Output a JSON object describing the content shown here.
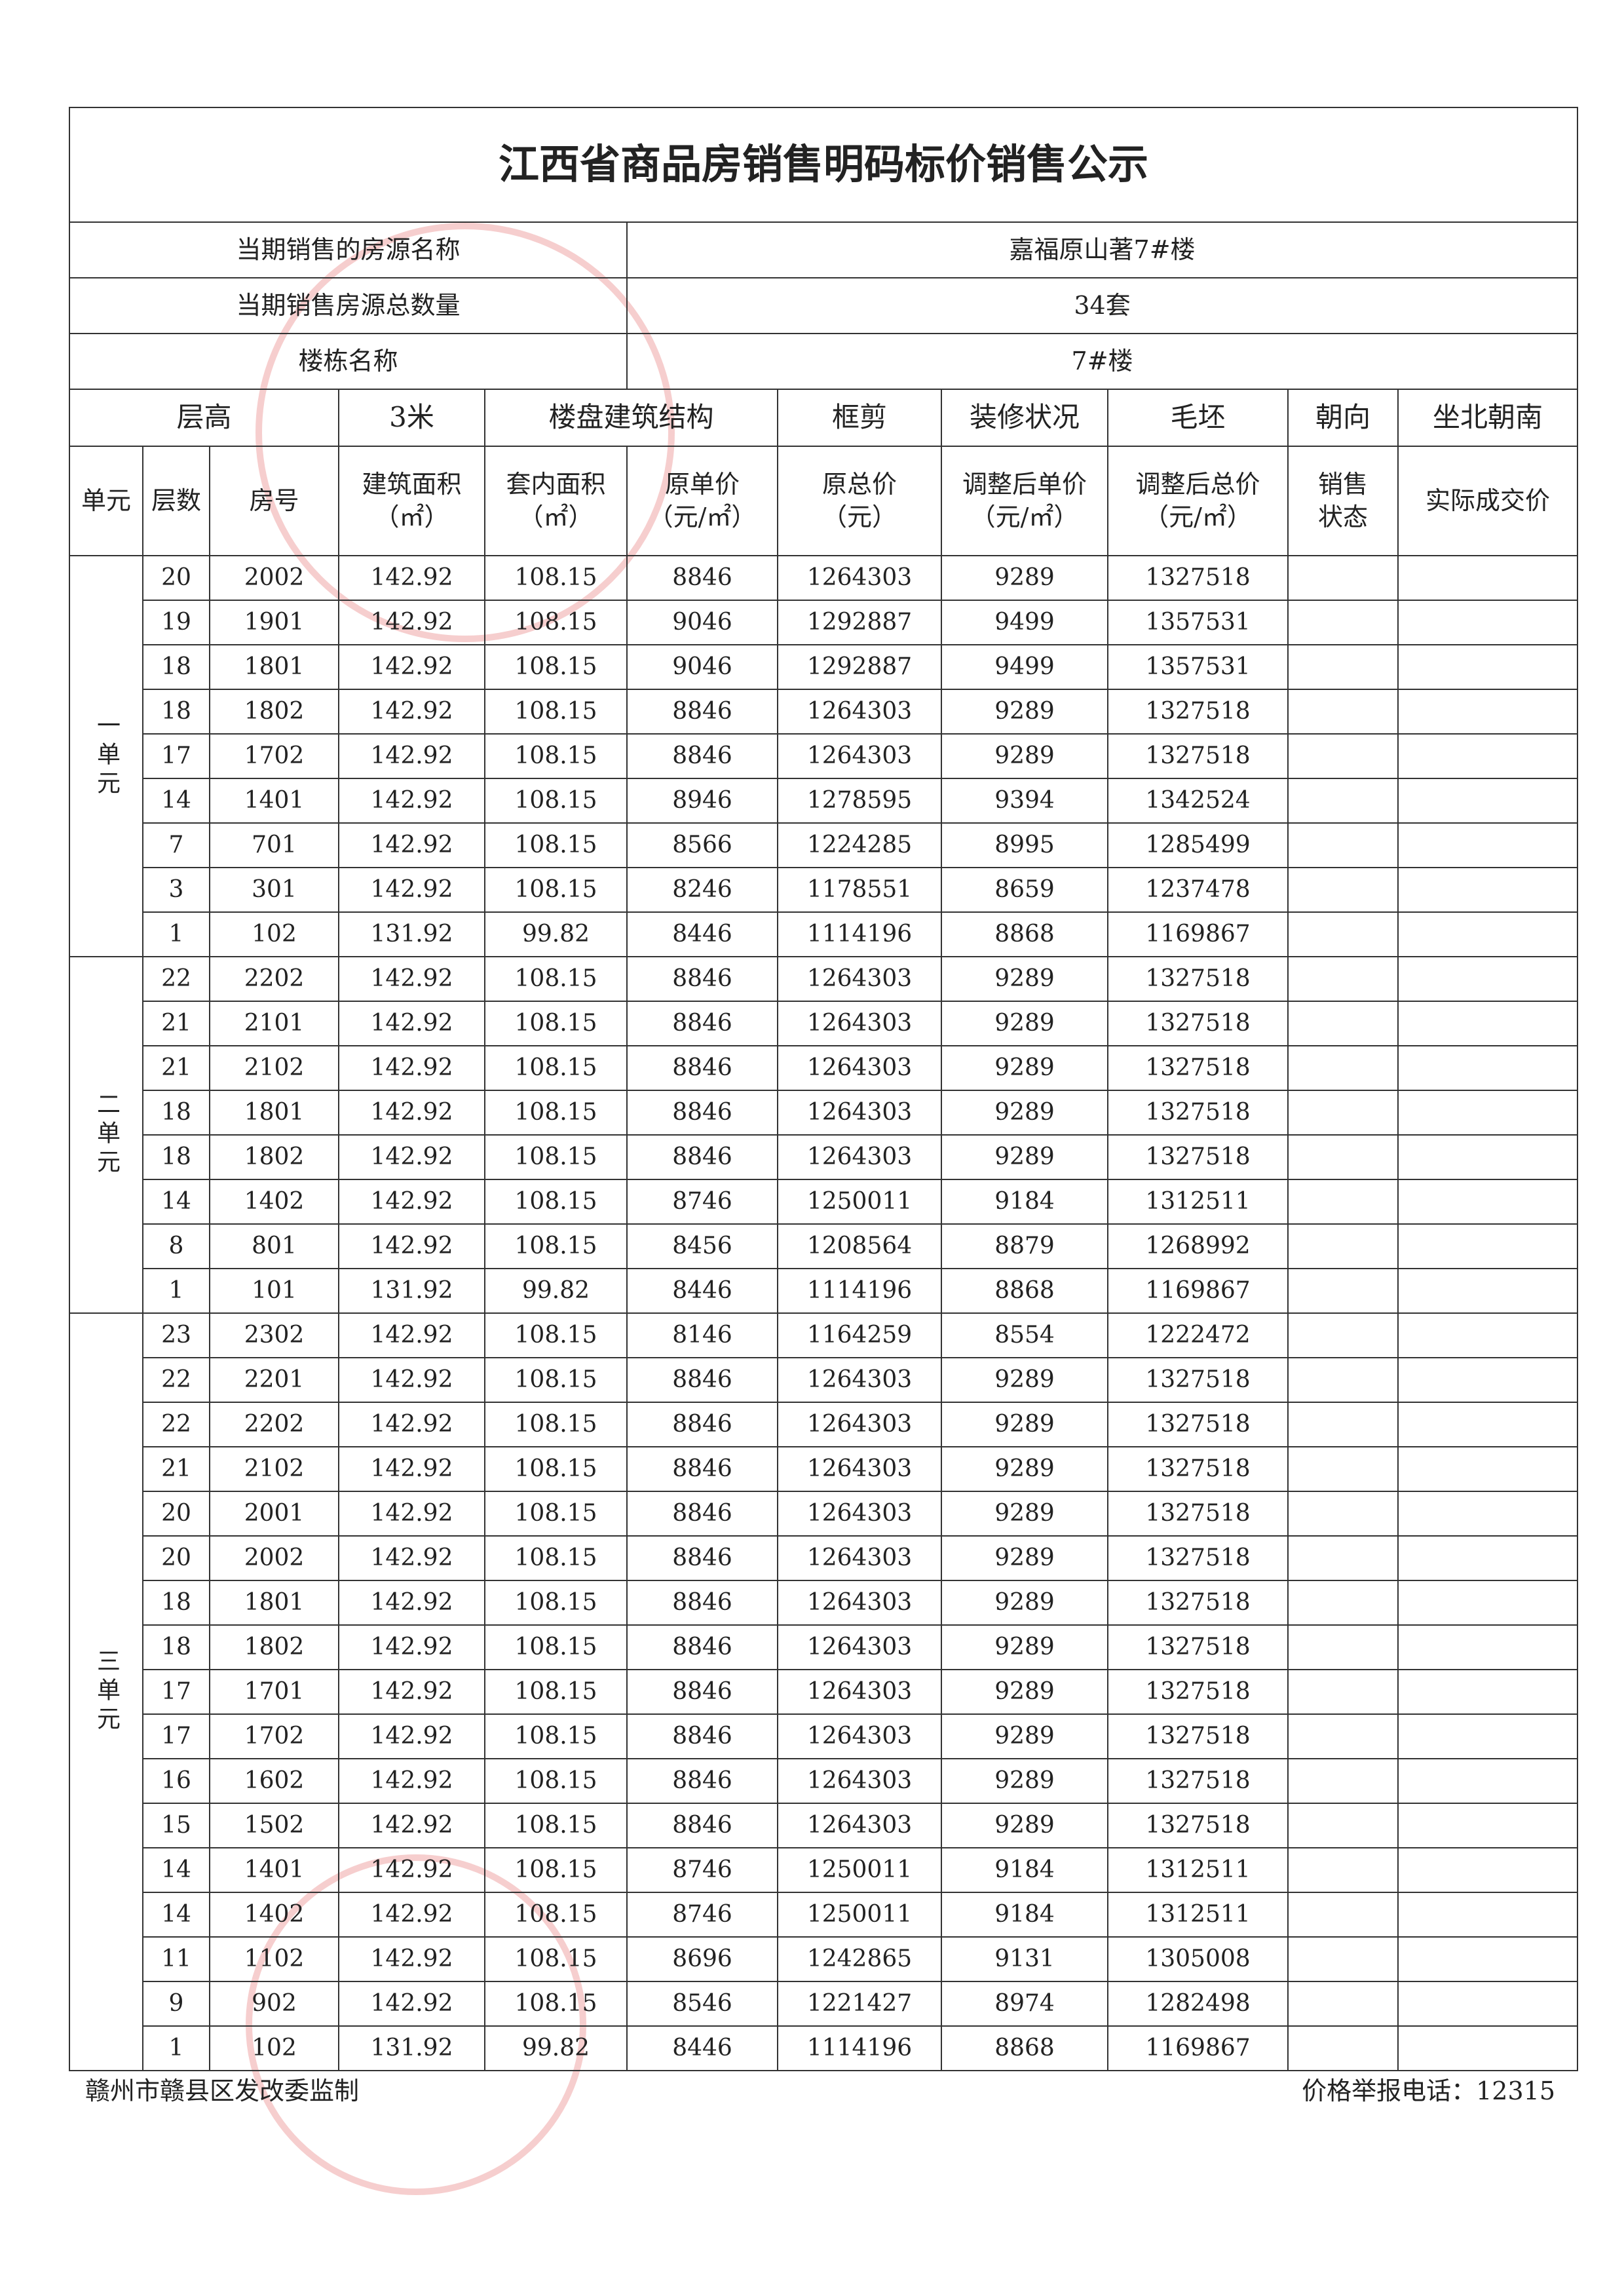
{
  "title": "江西省商品房销售明码标价销售公示",
  "info": [
    {
      "label": "当期销售的房源名称",
      "value": "嘉福原山著7#楼"
    },
    {
      "label": "当期销售房源总数量",
      "value": "34套"
    },
    {
      "label": "楼栋名称",
      "value": "7#楼"
    }
  ],
  "spec_row": [
    "层高",
    "3米",
    "楼盘建筑结构",
    "框剪",
    "装修状况",
    "毛坯",
    "朝向",
    "坐北朝南"
  ],
  "header": [
    "单元",
    "层数",
    "房号",
    "建筑面积\n（㎡）",
    "套内面积\n（㎡）",
    "原单价\n（元/㎡）",
    "原总价\n（元）",
    "调整后单价\n（元/㎡）",
    "调整后总价\n（元/㎡）",
    "销售\n状态",
    "实际成交价"
  ],
  "units": [
    {
      "name": "一单元",
      "rows": [
        [
          "20",
          "2002",
          "142.92",
          "108.15",
          "8846",
          "1264303",
          "9289",
          "1327518"
        ],
        [
          "19",
          "1901",
          "142.92",
          "108.15",
          "9046",
          "1292887",
          "9499",
          "1357531"
        ],
        [
          "18",
          "1801",
          "142.92",
          "108.15",
          "9046",
          "1292887",
          "9499",
          "1357531"
        ],
        [
          "18",
          "1802",
          "142.92",
          "108.15",
          "8846",
          "1264303",
          "9289",
          "1327518"
        ],
        [
          "17",
          "1702",
          "142.92",
          "108.15",
          "8846",
          "1264303",
          "9289",
          "1327518"
        ],
        [
          "14",
          "1401",
          "142.92",
          "108.15",
          "8946",
          "1278595",
          "9394",
          "1342524"
        ],
        [
          "7",
          "701",
          "142.92",
          "108.15",
          "8566",
          "1224285",
          "8995",
          "1285499"
        ],
        [
          "3",
          "301",
          "142.92",
          "108.15",
          "8246",
          "1178551",
          "8659",
          "1237478"
        ],
        [
          "1",
          "102",
          "131.92",
          "99.82",
          "8446",
          "1114196",
          "8868",
          "1169867"
        ]
      ]
    },
    {
      "name": "二单元",
      "rows": [
        [
          "22",
          "2202",
          "142.92",
          "108.15",
          "8846",
          "1264303",
          "9289",
          "1327518"
        ],
        [
          "21",
          "2101",
          "142.92",
          "108.15",
          "8846",
          "1264303",
          "9289",
          "1327518"
        ],
        [
          "21",
          "2102",
          "142.92",
          "108.15",
          "8846",
          "1264303",
          "9289",
          "1327518"
        ],
        [
          "18",
          "1801",
          "142.92",
          "108.15",
          "8846",
          "1264303",
          "9289",
          "1327518"
        ],
        [
          "18",
          "1802",
          "142.92",
          "108.15",
          "8846",
          "1264303",
          "9289",
          "1327518"
        ],
        [
          "14",
          "1402",
          "142.92",
          "108.15",
          "8746",
          "1250011",
          "9184",
          "1312511"
        ],
        [
          "8",
          "801",
          "142.92",
          "108.15",
          "8456",
          "1208564",
          "8879",
          "1268992"
        ],
        [
          "1",
          "101",
          "131.92",
          "99.82",
          "8446",
          "1114196",
          "8868",
          "1169867"
        ]
      ]
    },
    {
      "name": "三单元",
      "rows": [
        [
          "23",
          "2302",
          "142.92",
          "108.15",
          "8146",
          "1164259",
          "8554",
          "1222472"
        ],
        [
          "22",
          "2201",
          "142.92",
          "108.15",
          "8846",
          "1264303",
          "9289",
          "1327518"
        ],
        [
          "22",
          "2202",
          "142.92",
          "108.15",
          "8846",
          "1264303",
          "9289",
          "1327518"
        ],
        [
          "21",
          "2102",
          "142.92",
          "108.15",
          "8846",
          "1264303",
          "9289",
          "1327518"
        ],
        [
          "20",
          "2001",
          "142.92",
          "108.15",
          "8846",
          "1264303",
          "9289",
          "1327518"
        ],
        [
          "20",
          "2002",
          "142.92",
          "108.15",
          "8846",
          "1264303",
          "9289",
          "1327518"
        ],
        [
          "18",
          "1801",
          "142.92",
          "108.15",
          "8846",
          "1264303",
          "9289",
          "1327518"
        ],
        [
          "18",
          "1802",
          "142.92",
          "108.15",
          "8846",
          "1264303",
          "9289",
          "1327518"
        ],
        [
          "17",
          "1701",
          "142.92",
          "108.15",
          "8846",
          "1264303",
          "9289",
          "1327518"
        ],
        [
          "17",
          "1702",
          "142.92",
          "108.15",
          "8846",
          "1264303",
          "9289",
          "1327518"
        ],
        [
          "16",
          "1602",
          "142.92",
          "108.15",
          "8846",
          "1264303",
          "9289",
          "1327518"
        ],
        [
          "15",
          "1502",
          "142.92",
          "108.15",
          "8846",
          "1264303",
          "9289",
          "1327518"
        ],
        [
          "14",
          "1401",
          "142.92",
          "108.15",
          "8746",
          "1250011",
          "9184",
          "1312511"
        ],
        [
          "14",
          "1402",
          "142.92",
          "108.15",
          "8746",
          "1250011",
          "9184",
          "1312511"
        ],
        [
          "11",
          "1102",
          "142.92",
          "108.15",
          "8696",
          "1242865",
          "9131",
          "1305008"
        ],
        [
          "9",
          "902",
          "142.92",
          "108.15",
          "8546",
          "1221427",
          "8974",
          "1282498"
        ],
        [
          "1",
          "102",
          "131.92",
          "99.82",
          "8446",
          "1114196",
          "8868",
          "1169867"
        ]
      ]
    }
  ],
  "footer": {
    "left": "赣州市赣县区发改委监制",
    "right": "价格举报电话：12315"
  }
}
